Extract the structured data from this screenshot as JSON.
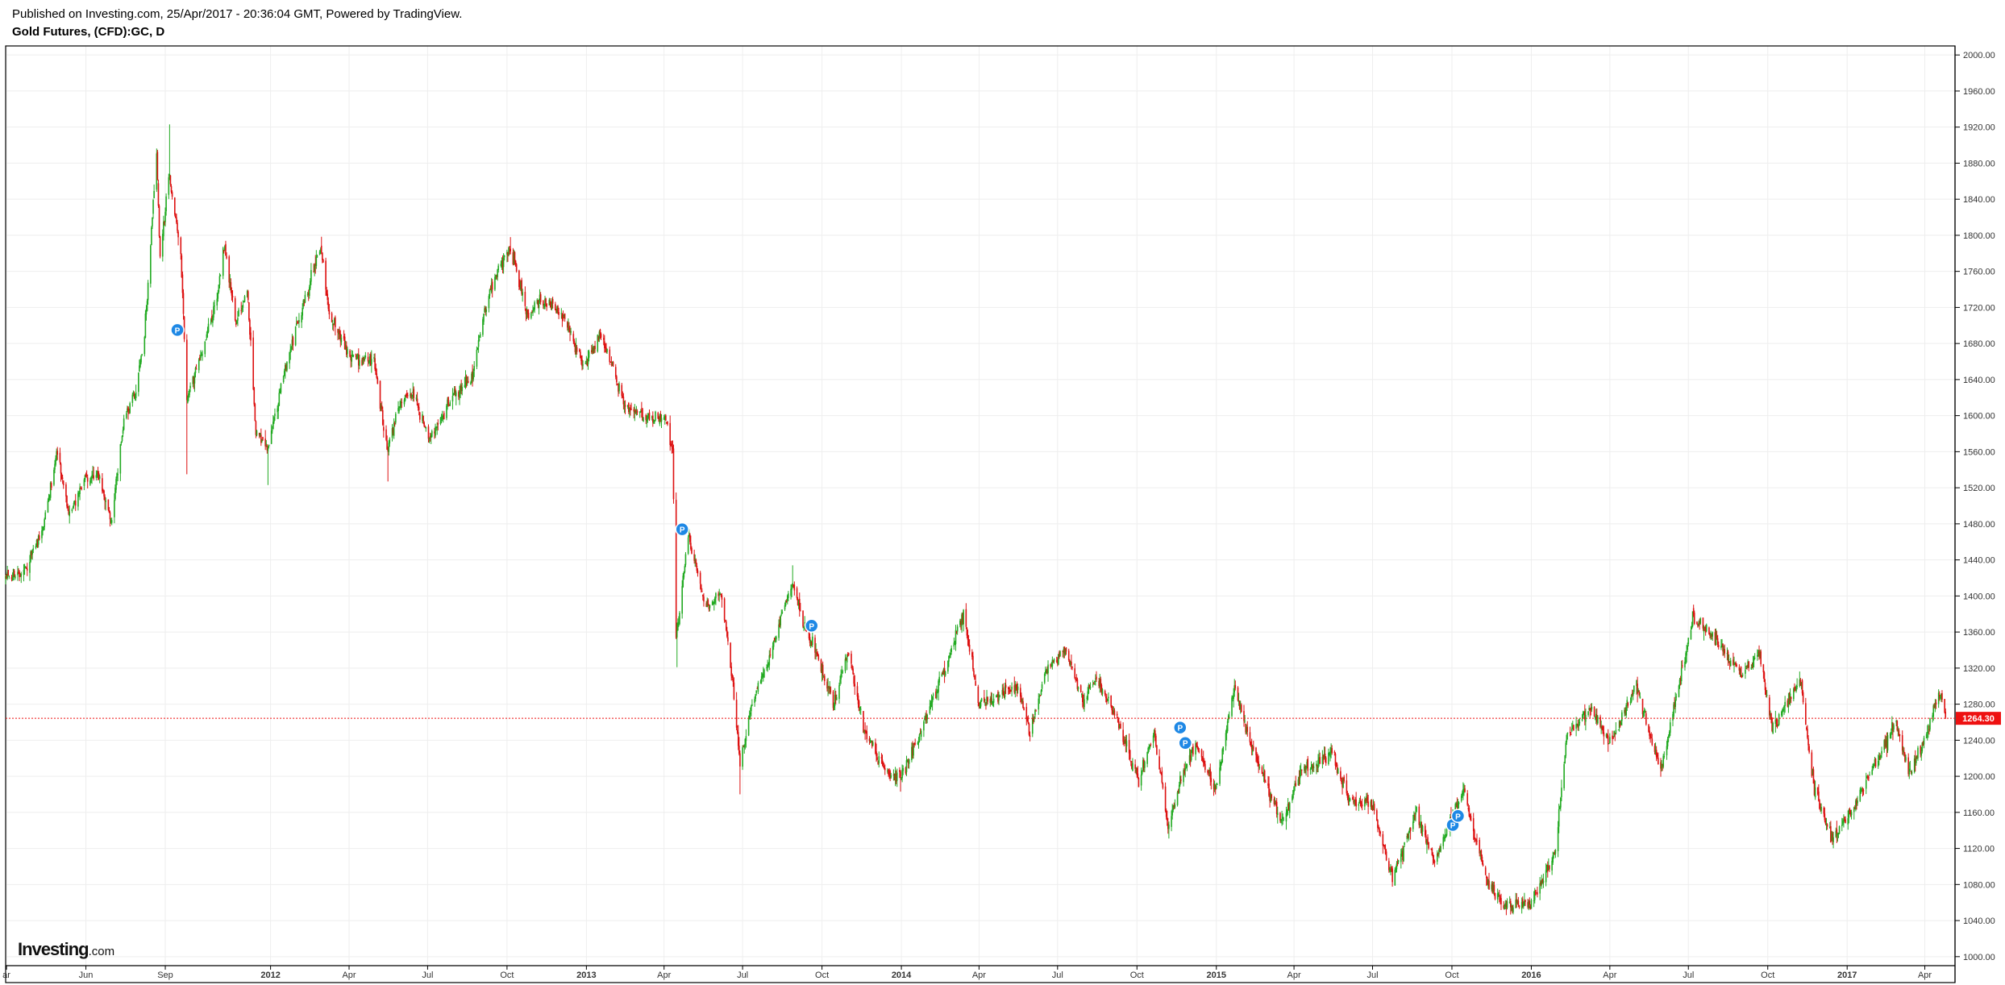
{
  "header": {
    "published": "Published on Investing.com, 25/Apr/2017 - 20:36:04 GMT, Powered by TradingView.",
    "symbol": "Gold Futures, (CFD):GC, D"
  },
  "branding": {
    "logo_main": "Investing",
    "logo_suffix": ".com"
  },
  "colors": {
    "up": "#22aa22",
    "down": "#dd1111",
    "price_line": "#ee1111",
    "marker": "#1e88e5",
    "grid": "#eeeeee"
  },
  "chart_data": {
    "type": "candlestick",
    "title": "Gold Futures, (CFD):GC, D",
    "ylim": [
      990,
      2010
    ],
    "y_ticks": [
      "1000.00",
      "1040.00",
      "1080.00",
      "1120.00",
      "1160.00",
      "1200.00",
      "1240.00",
      "1280.00",
      "1320.00",
      "1360.00",
      "1400.00",
      "1440.00",
      "1480.00",
      "1520.00",
      "1560.00",
      "1600.00",
      "1640.00",
      "1680.00",
      "1720.00",
      "1760.00",
      "1800.00",
      "1840.00",
      "1880.00",
      "1920.00",
      "1960.00",
      "2000.00"
    ],
    "x_ticks": [
      {
        "label": "ar",
        "date": "2011-03-01",
        "bold": false
      },
      {
        "label": "Jun",
        "date": "2011-06-01",
        "bold": false
      },
      {
        "label": "Sep",
        "date": "2011-09-01",
        "bold": false
      },
      {
        "label": "2012",
        "date": "2012-01-01",
        "bold": true
      },
      {
        "label": "Apr",
        "date": "2012-04-01",
        "bold": false
      },
      {
        "label": "Jul",
        "date": "2012-07-01",
        "bold": false
      },
      {
        "label": "Oct",
        "date": "2012-10-01",
        "bold": false
      },
      {
        "label": "2013",
        "date": "2013-01-01",
        "bold": true
      },
      {
        "label": "Apr",
        "date": "2013-04-01",
        "bold": false
      },
      {
        "label": "Jul",
        "date": "2013-07-01",
        "bold": false
      },
      {
        "label": "Oct",
        "date": "2013-10-01",
        "bold": false
      },
      {
        "label": "2014",
        "date": "2014-01-01",
        "bold": true
      },
      {
        "label": "Apr",
        "date": "2014-04-01",
        "bold": false
      },
      {
        "label": "Jul",
        "date": "2014-07-01",
        "bold": false
      },
      {
        "label": "Oct",
        "date": "2014-10-01",
        "bold": false
      },
      {
        "label": "2015",
        "date": "2015-01-01",
        "bold": true
      },
      {
        "label": "Apr",
        "date": "2015-04-01",
        "bold": false
      },
      {
        "label": "Jul",
        "date": "2015-07-01",
        "bold": false
      },
      {
        "label": "Oct",
        "date": "2015-10-01",
        "bold": false
      },
      {
        "label": "2016",
        "date": "2016-01-01",
        "bold": true
      },
      {
        "label": "Apr",
        "date": "2016-04-01",
        "bold": false
      },
      {
        "label": "Jul",
        "date": "2016-07-01",
        "bold": false
      },
      {
        "label": "Oct",
        "date": "2016-10-01",
        "bold": false
      },
      {
        "label": "2017",
        "date": "2017-01-01",
        "bold": true
      },
      {
        "label": "Apr",
        "date": "2017-04-01",
        "bold": false
      }
    ],
    "x_range": [
      "2011-02-28",
      "2017-05-06"
    ],
    "last_price": 1264.3,
    "last_price_label": "1264.30",
    "close_path": [
      [
        "2011-02-28",
        1420
      ],
      [
        "2011-03-20",
        1425
      ],
      [
        "2011-04-12",
        1475
      ],
      [
        "2011-04-29",
        1560
      ],
      [
        "2011-05-12",
        1490
      ],
      [
        "2011-05-31",
        1530
      ],
      [
        "2011-06-14",
        1535
      ],
      [
        "2011-07-01",
        1485
      ],
      [
        "2011-07-15",
        1595
      ],
      [
        "2011-07-29",
        1630
      ],
      [
        "2011-08-08",
        1690
      ],
      [
        "2011-08-22",
        1890
      ],
      [
        "2011-08-26",
        1770
      ],
      [
        "2011-09-05",
        1870
      ],
      [
        "2011-09-19",
        1780
      ],
      [
        "2011-09-26",
        1620
      ],
      [
        "2011-10-10",
        1660
      ],
      [
        "2011-10-31",
        1730
      ],
      [
        "2011-11-08",
        1790
      ],
      [
        "2011-11-22",
        1700
      ],
      [
        "2011-12-05",
        1740
      ],
      [
        "2011-12-15",
        1580
      ],
      [
        "2011-12-29",
        1565
      ],
      [
        "2012-01-20",
        1660
      ],
      [
        "2012-02-10",
        1730
      ],
      [
        "2012-02-28",
        1790
      ],
      [
        "2012-03-09",
        1710
      ],
      [
        "2012-04-03",
        1665
      ],
      [
        "2012-04-30",
        1660
      ],
      [
        "2012-05-15",
        1560
      ],
      [
        "2012-06-01",
        1620
      ],
      [
        "2012-06-15",
        1625
      ],
      [
        "2012-07-02",
        1575
      ],
      [
        "2012-07-30",
        1620
      ],
      [
        "2012-08-20",
        1640
      ],
      [
        "2012-09-10",
        1735
      ],
      [
        "2012-10-04",
        1790
      ],
      [
        "2012-10-25",
        1710
      ],
      [
        "2012-11-08",
        1730
      ],
      [
        "2012-12-03",
        1715
      ],
      [
        "2012-12-28",
        1655
      ],
      [
        "2013-01-18",
        1690
      ],
      [
        "2013-02-15",
        1610
      ],
      [
        "2013-03-15",
        1595
      ],
      [
        "2013-04-01",
        1600
      ],
      [
        "2013-04-11",
        1560
      ],
      [
        "2013-04-15",
        1350
      ],
      [
        "2013-04-29",
        1470
      ],
      [
        "2013-05-20",
        1385
      ],
      [
        "2013-06-06",
        1405
      ],
      [
        "2013-06-20",
        1300
      ],
      [
        "2013-06-28",
        1215
      ],
      [
        "2013-07-15",
        1290
      ],
      [
        "2013-07-31",
        1330
      ],
      [
        "2013-08-27",
        1415
      ],
      [
        "2013-09-10",
        1370
      ],
      [
        "2013-09-27",
        1330
      ],
      [
        "2013-10-15",
        1280
      ],
      [
        "2013-10-31",
        1340
      ],
      [
        "2013-11-20",
        1245
      ],
      [
        "2013-12-18",
        1200
      ],
      [
        "2013-12-31",
        1200
      ],
      [
        "2014-01-22",
        1245
      ],
      [
        "2014-02-20",
        1320
      ],
      [
        "2014-03-14",
        1380
      ],
      [
        "2014-04-01",
        1280
      ],
      [
        "2014-05-15",
        1300
      ],
      [
        "2014-05-30",
        1250
      ],
      [
        "2014-06-19",
        1320
      ],
      [
        "2014-07-10",
        1340
      ],
      [
        "2014-07-31",
        1285
      ],
      [
        "2014-08-15",
        1310
      ],
      [
        "2014-09-05",
        1270
      ],
      [
        "2014-10-03",
        1195
      ],
      [
        "2014-10-21",
        1250
      ],
      [
        "2014-11-06",
        1145
      ],
      [
        "2014-11-20",
        1195
      ],
      [
        "2014-12-08",
        1235
      ],
      [
        "2014-12-31",
        1185
      ],
      [
        "2015-01-22",
        1300
      ],
      [
        "2015-02-10",
        1235
      ],
      [
        "2015-03-17",
        1150
      ],
      [
        "2015-04-10",
        1205
      ],
      [
        "2015-05-15",
        1225
      ],
      [
        "2015-06-05",
        1170
      ],
      [
        "2015-06-30",
        1170
      ],
      [
        "2015-07-24",
        1085
      ],
      [
        "2015-08-21",
        1160
      ],
      [
        "2015-09-10",
        1105
      ],
      [
        "2015-10-14",
        1185
      ],
      [
        "2015-11-10",
        1085
      ],
      [
        "2015-12-03",
        1055
      ],
      [
        "2015-12-31",
        1060
      ],
      [
        "2016-01-29",
        1115
      ],
      [
        "2016-02-11",
        1245
      ],
      [
        "2016-03-10",
        1275
      ],
      [
        "2016-03-31",
        1235
      ],
      [
        "2016-05-02",
        1300
      ],
      [
        "2016-05-30",
        1205
      ],
      [
        "2016-06-24",
        1320
      ],
      [
        "2016-07-06",
        1375
      ],
      [
        "2016-08-01",
        1355
      ],
      [
        "2016-08-31",
        1310
      ],
      [
        "2016-09-21",
        1340
      ],
      [
        "2016-10-06",
        1255
      ],
      [
        "2016-11-08",
        1305
      ],
      [
        "2016-11-24",
        1185
      ],
      [
        "2016-12-15",
        1130
      ],
      [
        "2016-12-30",
        1150
      ],
      [
        "2017-02-01",
        1210
      ],
      [
        "2017-02-27",
        1260
      ],
      [
        "2017-03-14",
        1200
      ],
      [
        "2017-04-04",
        1250
      ],
      [
        "2017-04-17",
        1295
      ],
      [
        "2017-04-25",
        1264
      ]
    ],
    "extremes": [
      {
        "date": "2011-09-06",
        "high": 1923
      },
      {
        "date": "2011-09-26",
        "low": 1535
      },
      {
        "date": "2011-12-29",
        "low": 1523
      },
      {
        "date": "2012-05-16",
        "low": 1527
      },
      {
        "date": "2012-10-05",
        "high": 1798
      },
      {
        "date": "2013-04-16",
        "low": 1321
      },
      {
        "date": "2013-06-28",
        "low": 1180
      },
      {
        "date": "2013-08-28",
        "high": 1434
      },
      {
        "date": "2013-12-31",
        "low": 1183
      },
      {
        "date": "2014-03-17",
        "high": 1392
      },
      {
        "date": "2014-11-07",
        "low": 1131
      },
      {
        "date": "2015-01-22",
        "high": 1308
      },
      {
        "date": "2015-12-03",
        "low": 1046
      },
      {
        "date": "2016-07-06",
        "high": 1377
      },
      {
        "date": "2016-12-15",
        "low": 1124
      }
    ],
    "markers": [
      {
        "date": "2011-09-15",
        "price": 1695,
        "label": "P"
      },
      {
        "date": "2013-04-22",
        "price": 1474,
        "label": "P"
      },
      {
        "date": "2013-09-19",
        "price": 1367,
        "label": "P"
      },
      {
        "date": "2014-11-20",
        "price": 1254,
        "label": "P"
      },
      {
        "date": "2014-11-26",
        "price": 1237,
        "label": "P"
      },
      {
        "date": "2015-10-02",
        "price": 1146,
        "label": "P"
      },
      {
        "date": "2015-10-08",
        "price": 1156,
        "label": "P"
      }
    ]
  }
}
